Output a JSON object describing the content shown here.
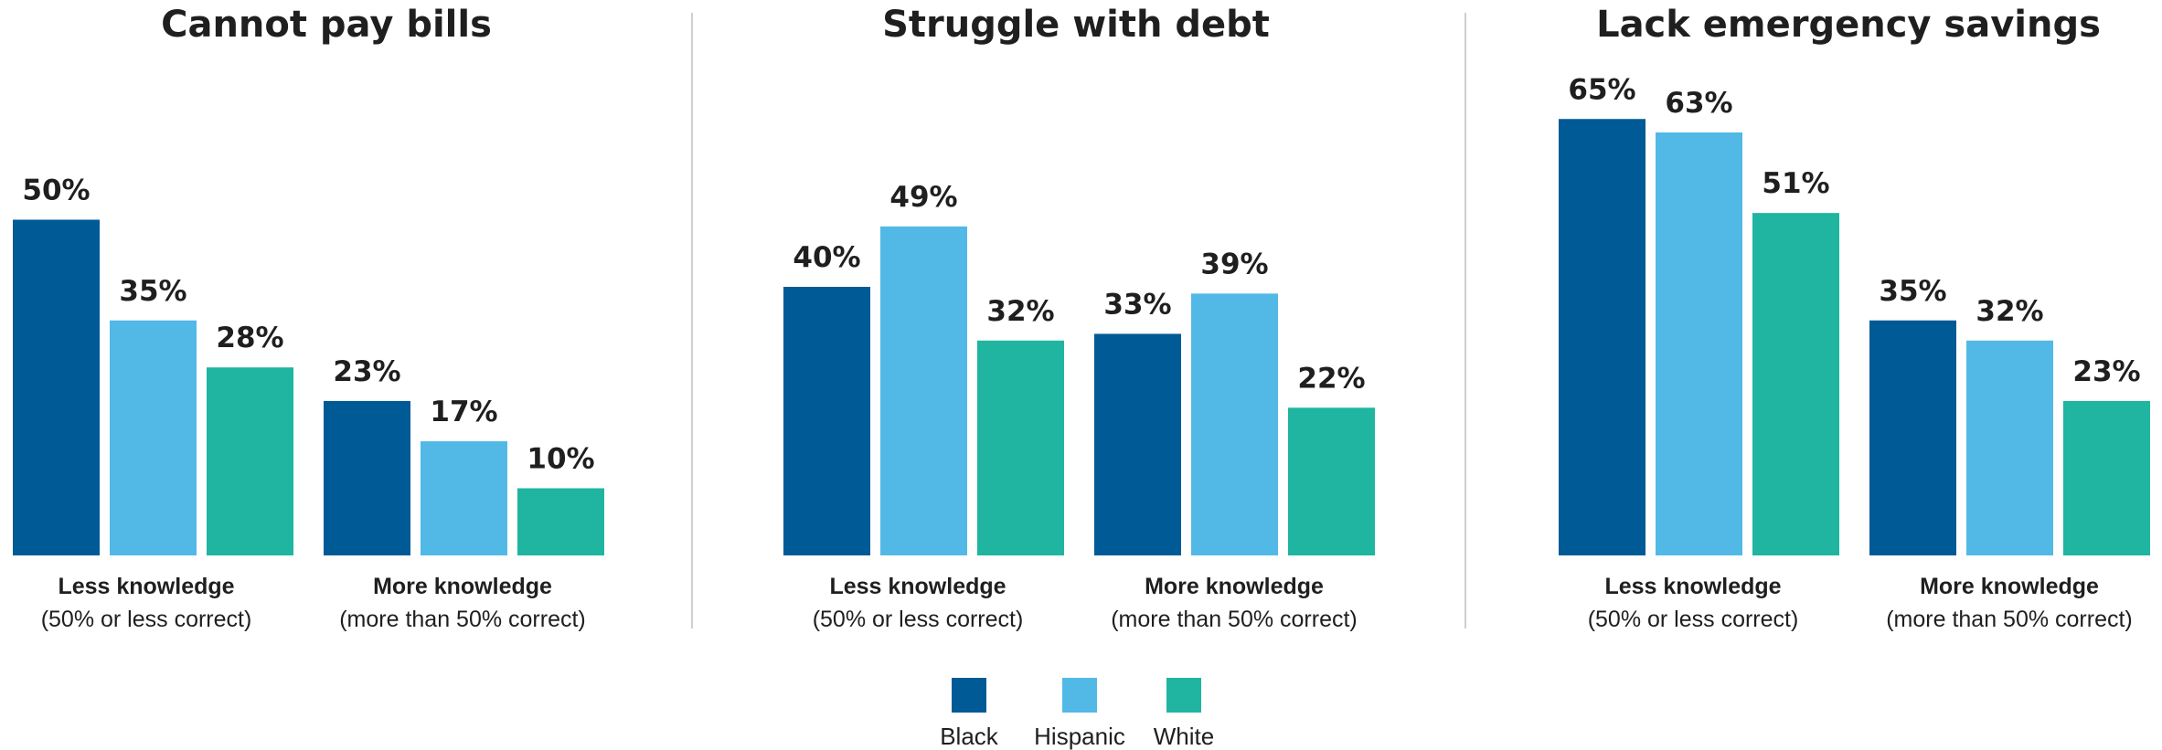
{
  "colors": {
    "Black": "#005a96",
    "Hispanic": "#52b9e7",
    "White": "#1fb5a0"
  },
  "legend": [
    "Black",
    "Hispanic",
    "White"
  ],
  "chart_data": [
    {
      "type": "bar",
      "title": "Cannot pay bills",
      "categories": [
        "Less knowledge",
        "More knowledge"
      ],
      "category_sublabels": [
        "(50% or less correct)",
        "(more than 50% correct)"
      ],
      "series": [
        {
          "name": "Black",
          "values": [
            50,
            23
          ]
        },
        {
          "name": "Hispanic",
          "values": [
            35,
            17
          ]
        },
        {
          "name": "White",
          "values": [
            28,
            10
          ]
        }
      ],
      "value_format": "percent",
      "ylim": [
        0,
        70
      ],
      "grid": false,
      "legend_position": "bottom-center"
    },
    {
      "type": "bar",
      "title": "Struggle with debt",
      "categories": [
        "Less knowledge",
        "More knowledge"
      ],
      "category_sublabels": [
        "(50% or less correct)",
        "(more than 50% correct)"
      ],
      "series": [
        {
          "name": "Black",
          "values": [
            40,
            33
          ]
        },
        {
          "name": "Hispanic",
          "values": [
            49,
            39
          ]
        },
        {
          "name": "White",
          "values": [
            32,
            22
          ]
        }
      ],
      "value_format": "percent",
      "ylim": [
        0,
        70
      ],
      "grid": false,
      "legend_position": "bottom-center"
    },
    {
      "type": "bar",
      "title": "Lack emergency savings",
      "categories": [
        "Less knowledge",
        "More knowledge"
      ],
      "category_sublabels": [
        "(50% or less correct)",
        "(more than 50% correct)"
      ],
      "series": [
        {
          "name": "Black",
          "values": [
            65,
            35
          ]
        },
        {
          "name": "Hispanic",
          "values": [
            63,
            32
          ]
        },
        {
          "name": "White",
          "values": [
            51,
            23
          ]
        }
      ],
      "value_format": "percent",
      "ylim": [
        0,
        70
      ],
      "grid": false,
      "legend_position": "bottom-center"
    }
  ]
}
